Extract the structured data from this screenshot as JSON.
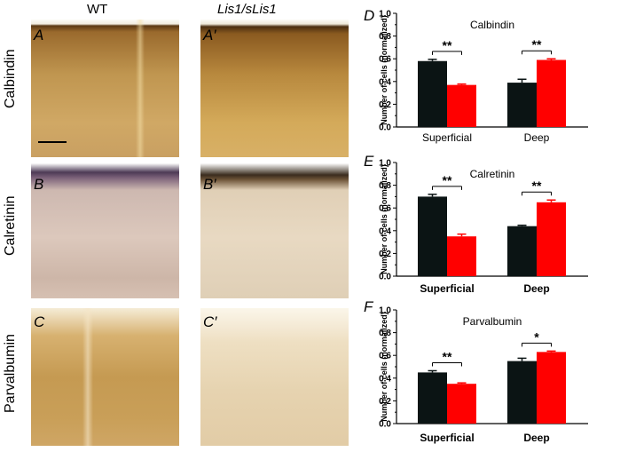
{
  "headers": {
    "wt": "WT",
    "mutant": "Lis1/sLis1"
  },
  "row_labels": [
    "Calbindin",
    "Calretinin",
    "Parvalbumin"
  ],
  "micro_letters": {
    "calbindin": [
      "A",
      "A′"
    ],
    "calretinin": [
      "B",
      "B′"
    ],
    "parvalbumin": [
      "C",
      "C′"
    ]
  },
  "colors": {
    "wt": "#0b1414",
    "mutant": "#ff0000"
  },
  "chart_data": [
    {
      "letter": "D",
      "type": "bar",
      "title": "Calbindin",
      "categories": [
        "Superficial",
        "Deep"
      ],
      "bold_categories": false,
      "series": [
        {
          "values": [
            0.58,
            0.39
          ],
          "errors": [
            0.015,
            0.03
          ],
          "color": "#0b1414"
        },
        {
          "values": [
            0.37,
            0.59
          ],
          "errors": [
            0.008,
            0.01
          ],
          "color": "#ff0000"
        }
      ],
      "significance": [
        "**",
        "**"
      ],
      "ylabel": "Number of cells (normalized)",
      "ylim": [
        0,
        1.0
      ],
      "yticks": [
        "0.0",
        "0.2",
        "0.4",
        "0.6",
        "0.8",
        "1.0"
      ]
    },
    {
      "letter": "E",
      "type": "bar",
      "title": "Calretinin",
      "categories": [
        "Superficial",
        "Deep"
      ],
      "bold_categories": true,
      "series": [
        {
          "values": [
            0.7,
            0.44
          ],
          "errors": [
            0.02,
            0.008
          ],
          "color": "#0b1414"
        },
        {
          "values": [
            0.35,
            0.65
          ],
          "errors": [
            0.02,
            0.02
          ],
          "color": "#ff0000"
        }
      ],
      "significance": [
        "**",
        "**"
      ],
      "ylabel": "Number of cells (normalized)",
      "ylim": [
        0,
        1.0
      ],
      "yticks": [
        "0.0",
        "0.2",
        "0.4",
        "0.6",
        "0.8",
        "1.0"
      ]
    },
    {
      "letter": "F",
      "type": "bar",
      "title": "Parvalbumin",
      "categories": [
        "Superficial",
        "Deep"
      ],
      "bold_categories": true,
      "series": [
        {
          "values": [
            0.45,
            0.55
          ],
          "errors": [
            0.015,
            0.025
          ],
          "color": "#0b1414"
        },
        {
          "values": [
            0.35,
            0.63
          ],
          "errors": [
            0.008,
            0.008
          ],
          "color": "#ff0000"
        }
      ],
      "significance": [
        "**",
        "*"
      ],
      "ylabel": "Number of cells (normalized)",
      "ylim": [
        0,
        1.0
      ],
      "yticks": [
        "0.0",
        "0.2",
        "0.4",
        "0.6",
        "0.8",
        "1.0"
      ]
    }
  ]
}
